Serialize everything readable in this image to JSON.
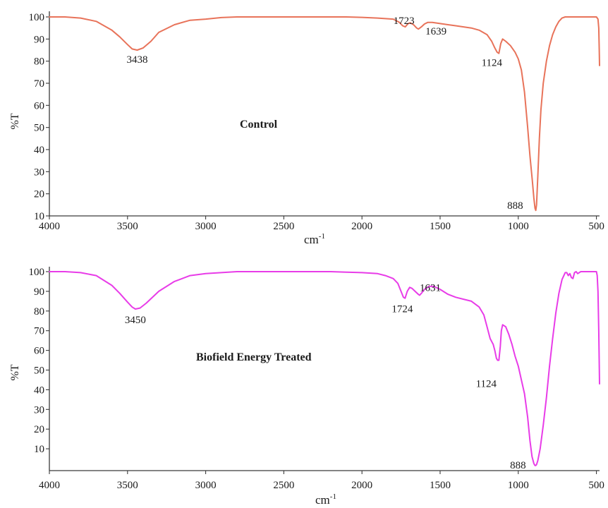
{
  "chart_data": [
    {
      "type": "line",
      "title": "",
      "sample_label": "Control",
      "xlabel": "cm",
      "xlabel_sup": "-1",
      "ylabel": "%T",
      "xlim": [
        4000,
        480
      ],
      "ylim": [
        10,
        102
      ],
      "x_reversed": true,
      "xticks": [
        4000,
        3500,
        3000,
        2500,
        2000,
        1500,
        1000,
        500
      ],
      "yticks": [
        10,
        20,
        30,
        40,
        50,
        60,
        70,
        80,
        90,
        100
      ],
      "color": "#e8735a",
      "series": [
        {
          "x": [
            4000,
            3900,
            3800,
            3700,
            3600,
            3550,
            3500,
            3470,
            3438,
            3400,
            3350,
            3300,
            3200,
            3100,
            3000,
            2900,
            2800,
            2700,
            2600,
            2500,
            2400,
            2300,
            2200,
            2100,
            2000,
            1900,
            1800,
            1760,
            1740,
            1723,
            1705,
            1690,
            1670,
            1650,
            1639,
            1620,
            1600,
            1580,
            1550,
            1500,
            1450,
            1400,
            1350,
            1300,
            1250,
            1200,
            1170,
            1150,
            1135,
            1124,
            1112,
            1100,
            1080,
            1050,
            1020,
            1000,
            980,
            960,
            940,
            925,
            910,
            900,
            893,
            888,
            883,
            875,
            865,
            855,
            840,
            820,
            800,
            780,
            760,
            740,
            720,
            700,
            680,
            660,
            640,
            620,
            600,
            580,
            560,
            540,
            520,
            500,
            490,
            485,
            482,
            480
          ],
          "y": [
            100,
            100,
            99.5,
            98,
            94,
            91,
            87.5,
            85.5,
            85,
            86,
            89,
            93,
            96.5,
            98.5,
            99,
            99.7,
            100,
            100,
            100,
            100,
            100,
            100,
            100,
            100,
            99.8,
            99.5,
            99,
            97.5,
            96,
            95.5,
            97,
            97.3,
            96.5,
            95,
            94.5,
            95.5,
            96.8,
            97.5,
            97.5,
            97,
            96.5,
            96,
            95.5,
            95,
            94,
            92,
            89,
            86,
            84,
            83.5,
            88,
            90,
            89,
            87,
            84,
            81,
            76,
            66,
            50,
            37,
            26,
            18,
            13.5,
            12.5,
            15,
            28,
            45,
            58,
            70,
            80,
            87,
            92,
            95.5,
            98,
            99.5,
            100,
            100,
            100,
            100,
            100,
            100,
            100,
            100,
            100,
            100,
            100,
            99,
            95,
            85,
            78
          ]
        }
      ],
      "annotations": [
        {
          "text": "3438",
          "x": 3438,
          "y": 85
        },
        {
          "text": "1723",
          "x": 1723,
          "y": 95.5
        },
        {
          "text": "1639",
          "x": 1639,
          "y": 94.5
        },
        {
          "text": "1124",
          "x": 1124,
          "y": 83.5
        },
        {
          "text": "888",
          "x": 888,
          "y": 12.5
        }
      ]
    },
    {
      "type": "line",
      "title": "",
      "sample_label": "Biofield Energy Treated",
      "xlabel": "cm",
      "xlabel_sup": "-1",
      "ylabel": "%T",
      "xlim": [
        4000,
        480
      ],
      "ylim": [
        0,
        102
      ],
      "x_reversed": true,
      "xticks": [
        4000,
        3500,
        3000,
        2500,
        2000,
        1500,
        1000,
        500
      ],
      "yticks": [
        10,
        20,
        30,
        40,
        50,
        60,
        70,
        80,
        90,
        100
      ],
      "color": "#e83ce8",
      "series": [
        {
          "x": [
            4000,
            3900,
            3800,
            3700,
            3600,
            3550,
            3500,
            3470,
            3450,
            3420,
            3380,
            3300,
            3200,
            3100,
            3000,
            2900,
            2800,
            2700,
            2600,
            2500,
            2400,
            2300,
            2200,
            2100,
            2000,
            1900,
            1850,
            1800,
            1770,
            1745,
            1735,
            1724,
            1710,
            1695,
            1680,
            1660,
            1640,
            1631,
            1620,
            1600,
            1570,
            1540,
            1500,
            1450,
            1400,
            1350,
            1300,
            1250,
            1220,
            1200,
            1180,
            1160,
            1150,
            1140,
            1132,
            1124,
            1115,
            1108,
            1100,
            1080,
            1060,
            1040,
            1020,
            1000,
            980,
            960,
            940,
            925,
            912,
            900,
            893,
            888,
            883,
            875,
            860,
            840,
            820,
            800,
            780,
            760,
            740,
            720,
            700,
            690,
            680,
            670,
            660,
            650,
            640,
            630,
            620,
            600,
            580,
            560,
            540,
            520,
            500,
            495,
            490,
            485,
            480
          ],
          "y": [
            100,
            100,
            99.5,
            98,
            93,
            89,
            84.5,
            82,
            81,
            81.5,
            84,
            90,
            95,
            98,
            99,
            99.5,
            100,
            100,
            100,
            100,
            100,
            100,
            100,
            99.7,
            99.5,
            99,
            98,
            96.5,
            94,
            89,
            87,
            86.5,
            90,
            92,
            91.5,
            90,
            88.5,
            88,
            89,
            91,
            92.5,
            92.5,
            91,
            88.5,
            87,
            86,
            85,
            82,
            78,
            72,
            66,
            63,
            60,
            56,
            55,
            55,
            62,
            70,
            73,
            72,
            68,
            63,
            57,
            52,
            45,
            38,
            26,
            14,
            6,
            2.5,
            1.5,
            1.5,
            2,
            4,
            10,
            22,
            36,
            52,
            66,
            79,
            89,
            96,
            99.5,
            99.5,
            98,
            99,
            97,
            96.5,
            99.5,
            100,
            99,
            100,
            100,
            100,
            100,
            100,
            100,
            98,
            90,
            70,
            43
          ]
        }
      ],
      "annotations": [
        {
          "text": "3450",
          "x": 3450,
          "y": 81
        },
        {
          "text": "1724",
          "x": 1724,
          "y": 86.5
        },
        {
          "text": "1631",
          "x": 1631,
          "y": 88
        },
        {
          "text": "1124",
          "x": 1124,
          "y": 55
        },
        {
          "text": "888",
          "x": 888,
          "y": 1.5
        }
      ]
    }
  ]
}
